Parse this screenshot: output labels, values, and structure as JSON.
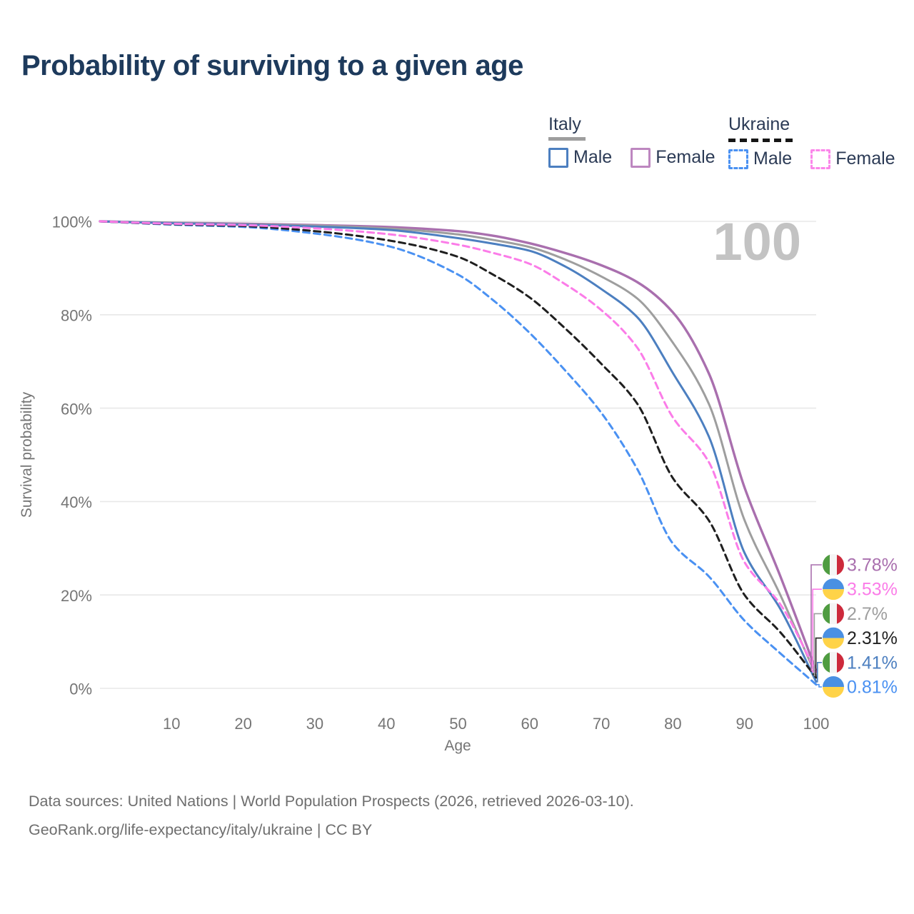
{
  "title": "Probability of surviving to a given age",
  "legend": {
    "groups": [
      {
        "name": "Italy",
        "line": "solid",
        "line_color": "#9e9e9e",
        "items": [
          {
            "label": "Male",
            "color": "#4c7fc0",
            "dashed": false
          },
          {
            "label": "Female",
            "color": "#bd87c0",
            "dashed": false
          }
        ]
      },
      {
        "name": "Ukraine",
        "line": "dashed",
        "line_color": "#161616",
        "items": [
          {
            "label": "Male",
            "color": "#4a91f2",
            "dashed": true
          },
          {
            "label": "Female",
            "color": "#fb86ea",
            "dashed": true
          }
        ]
      }
    ]
  },
  "footer": {
    "line1": "Data sources: United Nations | World Population Prospects (2026, retrieved 2026-03-10).",
    "line2": "GeoRank.org/life-expectancy/italy/ukraine | CC BY"
  },
  "colors": {
    "title": "#1d3a5c",
    "legend_text": "#2b3a55",
    "tick_text": "#757575",
    "gridline": "#e8e8e8",
    "watermark": "#c3c3c3",
    "footer_text": "#6e6e6e"
  },
  "chart_data": {
    "type": "line",
    "title": "Probability of surviving to a given age",
    "xlabel": "Age",
    "ylabel": "Survival probability",
    "xlim": [
      0,
      100
    ],
    "ylim": [
      0,
      100
    ],
    "grid": true,
    "legend_position": "top-right",
    "watermark": "100",
    "x_ticks": [
      10,
      20,
      30,
      40,
      50,
      60,
      70,
      80,
      90,
      100
    ],
    "y_ticks": [
      0,
      20,
      40,
      60,
      80,
      100
    ],
    "y_tick_suffix": "%",
    "x": [
      0,
      10,
      20,
      30,
      40,
      50,
      55,
      60,
      65,
      70,
      75,
      80,
      85,
      90,
      95,
      100
    ],
    "series": [
      {
        "name": "Italy Female",
        "country": "Italy",
        "sex": "Female",
        "style": "solid",
        "color": "#a96fae",
        "width": 3.4,
        "values": [
          100,
          99.7,
          99.5,
          99.2,
          98.8,
          97.9,
          96.9,
          95.3,
          93.2,
          90.6,
          87,
          80.5,
          67.5,
          43,
          24,
          3.78
        ]
      },
      {
        "name": "Italy Total",
        "country": "Italy",
        "sex": "Both",
        "style": "solid",
        "color": "#9e9e9e",
        "width": 3,
        "values": [
          100,
          99.7,
          99.4,
          99.1,
          98.5,
          97.2,
          96,
          94.5,
          91.8,
          88.2,
          83.5,
          74,
          61,
          36,
          20,
          2.7
        ]
      },
      {
        "name": "Italy Male",
        "country": "Italy",
        "sex": "Male",
        "style": "solid",
        "color": "#4c7fc0",
        "width": 3,
        "values": [
          100,
          99.6,
          99.3,
          98.9,
          98.2,
          96.4,
          95.2,
          93.7,
          90.3,
          85.5,
          79.5,
          67.5,
          54,
          29,
          17,
          1.41
        ]
      },
      {
        "name": "Ukraine Male",
        "country": "Ukraine",
        "sex": "Male",
        "style": "dashed",
        "color": "#4a91f2",
        "width": 3,
        "values": [
          100,
          99.3,
          98.8,
          97.4,
          94.8,
          88.6,
          83,
          76.1,
          68,
          59,
          47,
          31,
          24,
          14.5,
          7.5,
          0.81
        ]
      },
      {
        "name": "Ukraine Total",
        "country": "Ukraine",
        "sex": "Both",
        "style": "dashed",
        "color": "#1f1f1f",
        "width": 3,
        "values": [
          100,
          99.4,
          99,
          97.9,
          96,
          92.4,
          88.5,
          83.7,
          77,
          69.5,
          61,
          45,
          36,
          20,
          12,
          2.31
        ]
      },
      {
        "name": "Ukraine Female",
        "country": "Ukraine",
        "sex": "Female",
        "style": "dashed",
        "color": "#fb7ce8",
        "width": 3,
        "values": [
          100,
          99.5,
          99.2,
          98.5,
          97.3,
          95,
          93.2,
          90.9,
          86.5,
          81,
          73,
          58,
          48.5,
          27,
          18,
          3.53
        ]
      }
    ],
    "end_labels": [
      {
        "series": "Italy Female",
        "text": "3.78%",
        "flag": "italy",
        "color": "#a96fae"
      },
      {
        "series": "Ukraine Female",
        "text": "3.53%",
        "flag": "ukraine",
        "color": "#fb7ce8"
      },
      {
        "series": "Italy Total",
        "text": "2.7%",
        "flag": "italy",
        "color": "#9e9e9e"
      },
      {
        "series": "Ukraine Total",
        "text": "2.31%",
        "flag": "ukraine",
        "color": "#222222"
      },
      {
        "series": "Italy Male",
        "text": "1.41%",
        "flag": "italy",
        "color": "#4c7fc0"
      },
      {
        "series": "Ukraine Male",
        "text": "0.81%",
        "flag": "ukraine",
        "color": "#4a91f2"
      }
    ],
    "flag_colors": {
      "italy": [
        "#4f9c41",
        "#f5f5f5",
        "#cd2a3c"
      ],
      "ukraine": [
        "#4a90e2",
        "#ffd348"
      ]
    }
  }
}
